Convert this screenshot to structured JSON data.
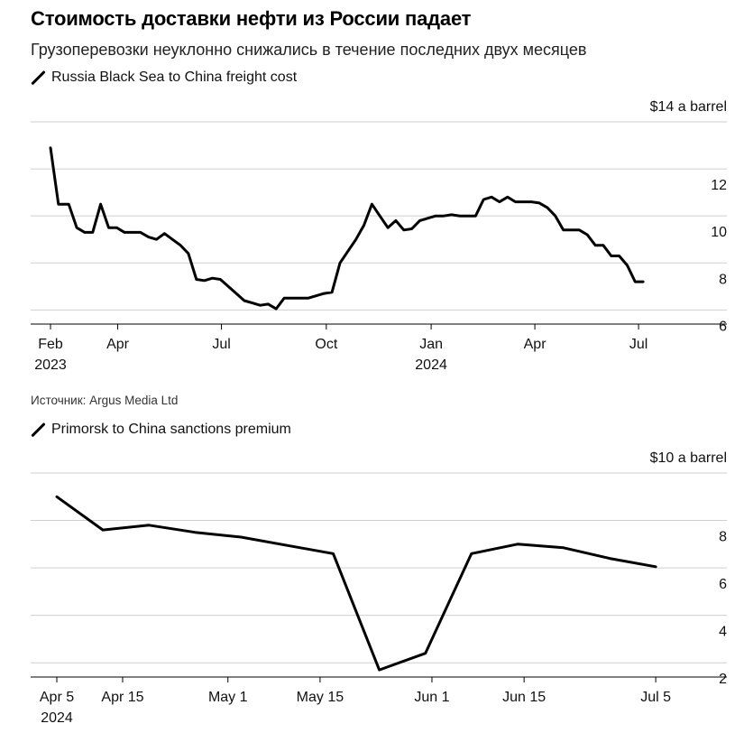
{
  "title": "Стоимость доставки нефти из России падает",
  "subtitle": "Грузоперевозки неуклонно снижались в течение последних двух месяцев",
  "source": "Источник: Argus Media Ltd",
  "chart_data": [
    {
      "type": "line",
      "legend": "Russia Black Sea to China freight cost",
      "unit_label": "$14 a barrel",
      "line_color": "#000000",
      "grid": true,
      "ylim": [
        5.4,
        14
      ],
      "yticks": [
        6,
        8,
        10,
        12
      ],
      "xlim": [
        "2023-02-01",
        "2024-07-31"
      ],
      "xticks": [
        {
          "date": "2023-02-01",
          "label": "Feb",
          "sub": "2023"
        },
        {
          "date": "2023-04-01",
          "label": "Apr",
          "sub": ""
        },
        {
          "date": "2023-07-01",
          "label": "Jul",
          "sub": ""
        },
        {
          "date": "2023-10-01",
          "label": "Oct",
          "sub": ""
        },
        {
          "date": "2024-01-01",
          "label": "Jan",
          "sub": "2024"
        },
        {
          "date": "2024-04-01",
          "label": "Apr",
          "sub": ""
        },
        {
          "date": "2024-07-01",
          "label": "Jul",
          "sub": ""
        }
      ],
      "x": [
        "2023-02-01",
        "2023-02-08",
        "2023-02-17",
        "2023-02-24",
        "2023-03-03",
        "2023-03-10",
        "2023-03-17",
        "2023-03-24",
        "2023-03-31",
        "2023-04-07",
        "2023-04-14",
        "2023-04-21",
        "2023-04-28",
        "2023-05-05",
        "2023-05-12",
        "2023-05-19",
        "2023-05-26",
        "2023-06-02",
        "2023-06-09",
        "2023-06-16",
        "2023-06-23",
        "2023-06-30",
        "2023-07-07",
        "2023-07-14",
        "2023-07-21",
        "2023-07-28",
        "2023-08-04",
        "2023-08-11",
        "2023-08-18",
        "2023-08-25",
        "2023-09-01",
        "2023-09-08",
        "2023-09-15",
        "2023-09-22",
        "2023-09-29",
        "2023-10-06",
        "2023-10-13",
        "2023-10-20",
        "2023-10-27",
        "2023-11-03",
        "2023-11-10",
        "2023-11-17",
        "2023-11-24",
        "2023-12-01",
        "2023-12-08",
        "2023-12-15",
        "2023-12-22",
        "2023-12-29",
        "2024-01-05",
        "2024-01-12",
        "2024-01-19",
        "2024-01-26",
        "2024-02-02",
        "2024-02-09",
        "2024-02-16",
        "2024-02-23",
        "2024-03-01",
        "2024-03-08",
        "2024-03-15",
        "2024-03-22",
        "2024-03-29",
        "2024-04-05",
        "2024-04-12",
        "2024-04-19",
        "2024-04-26",
        "2024-05-03",
        "2024-05-10",
        "2024-05-17",
        "2024-05-24",
        "2024-05-31",
        "2024-06-07",
        "2024-06-14",
        "2024-06-21",
        "2024-06-28",
        "2024-07-05"
      ],
      "values": [
        12.9,
        10.5,
        10.5,
        9.5,
        9.3,
        9.3,
        10.5,
        9.5,
        9.5,
        9.3,
        9.3,
        9.3,
        9.1,
        9.0,
        9.25,
        9.0,
        8.75,
        8.4,
        7.3,
        7.25,
        7.35,
        7.3,
        7.0,
        6.7,
        6.4,
        6.3,
        6.2,
        6.25,
        6.05,
        6.5,
        6.5,
        6.5,
        6.5,
        6.6,
        6.7,
        6.75,
        8.0,
        8.5,
        9.0,
        9.6,
        10.5,
        10.0,
        9.5,
        9.8,
        9.4,
        9.45,
        9.8,
        9.9,
        10.0,
        10.0,
        10.05,
        10.0,
        10.0,
        10.0,
        10.7,
        10.8,
        10.6,
        10.8,
        10.6,
        10.6,
        10.6,
        10.55,
        10.35,
        10.0,
        9.4,
        9.4,
        9.4,
        9.2,
        8.75,
        8.75,
        8.3,
        8.3,
        7.9,
        7.2,
        7.2
      ]
    },
    {
      "type": "line",
      "legend": "Primorsk to China sanctions premium",
      "unit_label": "$10 a barrel",
      "line_color": "#000000",
      "grid": true,
      "ylim": [
        1.4,
        10
      ],
      "yticks": [
        2,
        4,
        6,
        8
      ],
      "xlim": [
        "2024-04-05",
        "2024-07-08"
      ],
      "xticks": [
        {
          "date": "2024-04-05",
          "label": "Apr 5",
          "sub": "2024"
        },
        {
          "date": "2024-04-15",
          "label": "Apr 15",
          "sub": ""
        },
        {
          "date": "2024-05-01",
          "label": "May 1",
          "sub": ""
        },
        {
          "date": "2024-05-15",
          "label": "May 15",
          "sub": ""
        },
        {
          "date": "2024-06-01",
          "label": "Jun 1",
          "sub": ""
        },
        {
          "date": "2024-06-15",
          "label": "Jun 15",
          "sub": ""
        },
        {
          "date": "2024-07-05",
          "label": "Jul 5",
          "sub": ""
        }
      ],
      "x": [
        "2024-04-05",
        "2024-04-12",
        "2024-04-19",
        "2024-04-26",
        "2024-05-03",
        "2024-05-10",
        "2024-05-17",
        "2024-05-24",
        "2024-05-31",
        "2024-06-07",
        "2024-06-14",
        "2024-06-21",
        "2024-06-28",
        "2024-07-05"
      ],
      "values": [
        9.0,
        7.6,
        7.8,
        7.5,
        7.3,
        6.95,
        6.6,
        1.7,
        2.4,
        6.6,
        7.0,
        6.85,
        6.4,
        6.05
      ]
    }
  ]
}
